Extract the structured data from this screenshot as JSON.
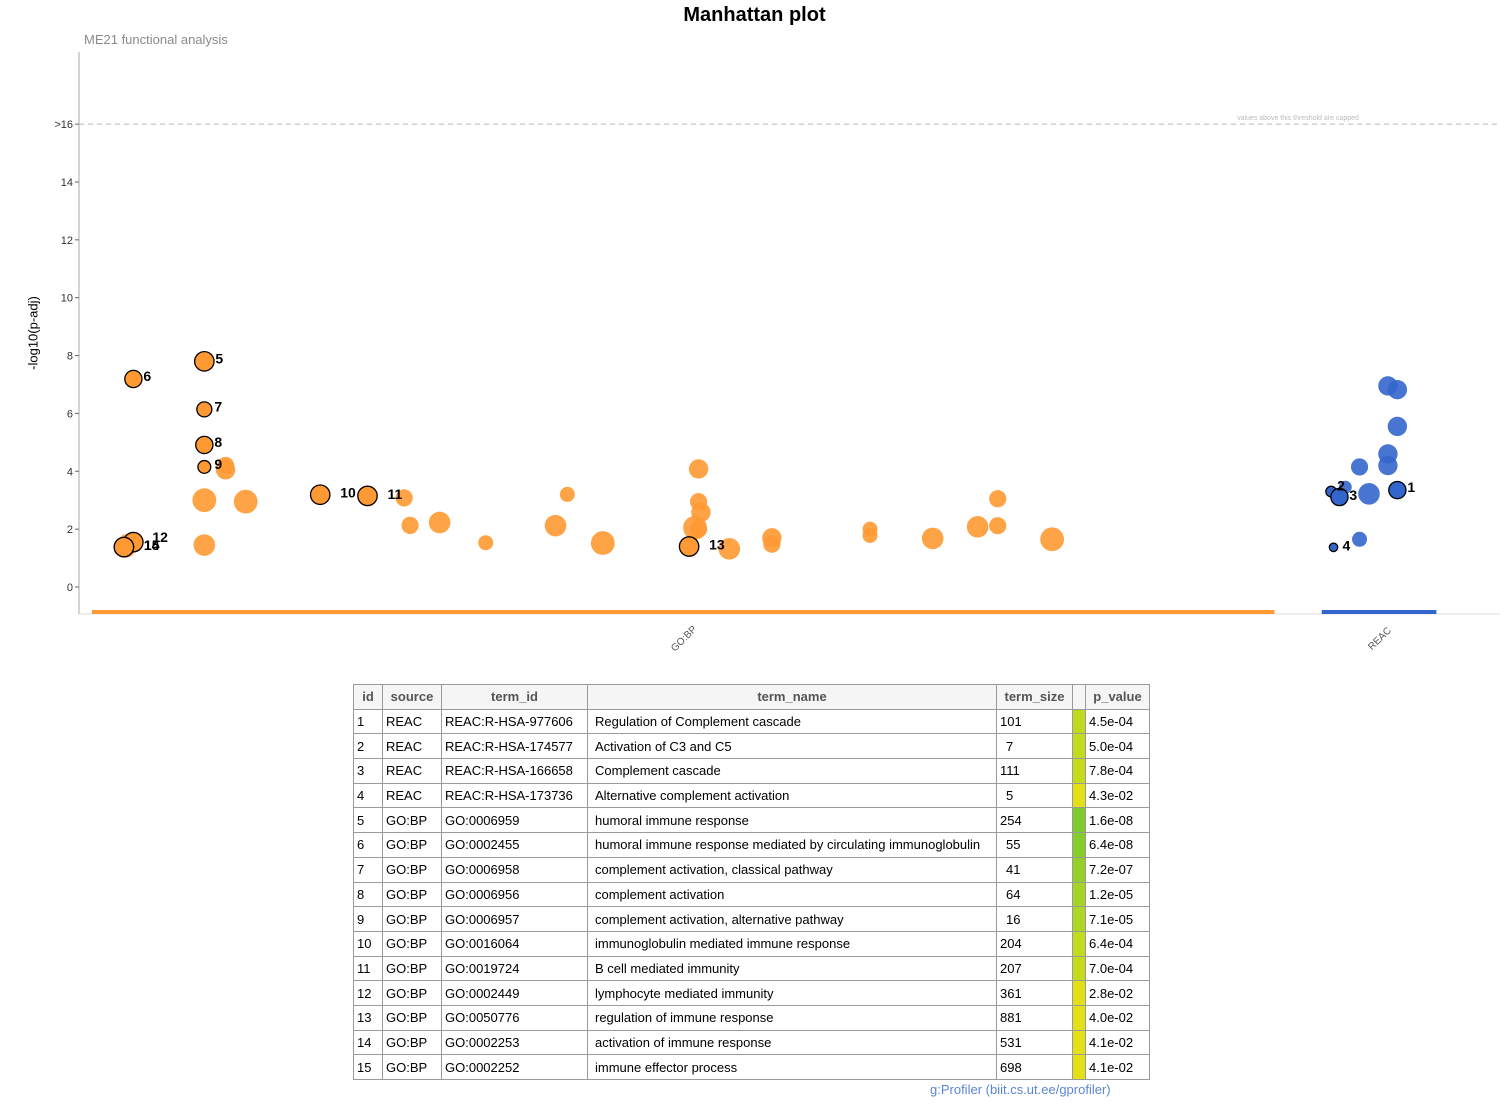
{
  "chart_data": {
    "type": "scatter",
    "title": "Manhattan plot",
    "subtitle": "ME21 functional analysis",
    "ylabel": "-log10(p-adj)",
    "ylim": [
      -0.9,
      18
    ],
    "yticks": [
      {
        "value": 0,
        "label": "0"
      },
      {
        "value": 2,
        "label": "2"
      },
      {
        "value": 4,
        "label": "4"
      },
      {
        "value": 6,
        "label": "6"
      },
      {
        "value": 8,
        "label": "8"
      },
      {
        "value": 10,
        "label": "10"
      },
      {
        "value": 12,
        "label": "12"
      },
      {
        "value": 14,
        "label": "14"
      },
      {
        "value": 16,
        "label": ">16"
      }
    ],
    "threshold": {
      "value": 16,
      "note": "values above this threshold are capped"
    },
    "grid": false,
    "x_axis": {
      "type": "categorical",
      "note": "x position = term position within source"
    },
    "sources": [
      {
        "name": "GO:BP",
        "color": "#FF9933",
        "xrange": [
          0,
          1000
        ]
      },
      {
        "name": "REAC",
        "color": "#3366CC",
        "xrange": [
          1040,
          1137
        ]
      }
    ],
    "series": [
      {
        "name": "GO:BP",
        "color": "#FF9933",
        "points": [
          {
            "x": 28,
            "y": 1.38,
            "size": 8
          },
          {
            "x": 30,
            "y": 1.5,
            "size": 7
          },
          {
            "x": 95,
            "y": 3.0,
            "size": 9
          },
          {
            "x": 95,
            "y": 1.45,
            "size": 8
          },
          {
            "x": 113,
            "y": 4.2,
            "size": 6
          },
          {
            "x": 113,
            "y": 4.05,
            "size": 7
          },
          {
            "x": 130,
            "y": 2.95,
            "size": 9
          },
          {
            "x": 264,
            "y": 3.08,
            "size": 6
          },
          {
            "x": 269,
            "y": 2.13,
            "size": 6
          },
          {
            "x": 294,
            "y": 2.23,
            "size": 8
          },
          {
            "x": 333,
            "y": 1.53,
            "size": 5
          },
          {
            "x": 392,
            "y": 2.12,
            "size": 8
          },
          {
            "x": 402,
            "y": 3.2,
            "size": 5
          },
          {
            "x": 432,
            "y": 1.52,
            "size": 9
          },
          {
            "x": 510,
            "y": 2.05,
            "size": 9
          },
          {
            "x": 513,
            "y": 4.08,
            "size": 7
          },
          {
            "x": 513,
            "y": 2.95,
            "size": 6
          },
          {
            "x": 513,
            "y": 2.0,
            "size": 6
          },
          {
            "x": 515,
            "y": 2.58,
            "size": 7
          },
          {
            "x": 539,
            "y": 1.32,
            "size": 8
          },
          {
            "x": 575,
            "y": 1.7,
            "size": 7
          },
          {
            "x": 575,
            "y": 1.48,
            "size": 6
          },
          {
            "x": 658,
            "y": 2.0,
            "size": 5
          },
          {
            "x": 658,
            "y": 1.78,
            "size": 5
          },
          {
            "x": 711,
            "y": 1.68,
            "size": 8
          },
          {
            "x": 749,
            "y": 2.08,
            "size": 8
          },
          {
            "x": 766,
            "y": 3.05,
            "size": 6
          },
          {
            "x": 766,
            "y": 2.12,
            "size": 6
          },
          {
            "x": 812,
            "y": 1.65,
            "size": 9
          }
        ]
      },
      {
        "name": "REAC",
        "color": "#3366CC",
        "points": [
          {
            "x": 1060,
            "y": 3.45,
            "size": 4
          },
          {
            "x": 1072,
            "y": 4.15,
            "size": 6
          },
          {
            "x": 1072,
            "y": 1.65,
            "size": 5
          },
          {
            "x": 1080,
            "y": 3.22,
            "size": 8
          },
          {
            "x": 1096,
            "y": 6.95,
            "size": 7
          },
          {
            "x": 1096,
            "y": 4.6,
            "size": 7
          },
          {
            "x": 1096,
            "y": 4.2,
            "size": 7
          },
          {
            "x": 1104,
            "y": 6.82,
            "size": 7
          },
          {
            "x": 1104,
            "y": 5.55,
            "size": 7
          }
        ]
      }
    ],
    "highlighted": [
      {
        "id": "1",
        "source": "REAC",
        "x": 1104,
        "y": 3.35,
        "size": 6
      },
      {
        "id": "2",
        "source": "REAC",
        "x": 1048,
        "y": 3.3,
        "size": 3
      },
      {
        "id": "3",
        "source": "REAC",
        "x": 1055,
        "y": 3.11,
        "size": 6
      },
      {
        "id": "4",
        "source": "REAC",
        "x": 1050,
        "y": 1.37,
        "size": 2
      },
      {
        "id": "5",
        "source": "GO:BP",
        "x": 95,
        "y": 7.8,
        "size": 7
      },
      {
        "id": "6",
        "source": "GO:BP",
        "x": 35,
        "y": 7.19,
        "size": 6
      },
      {
        "id": "7",
        "source": "GO:BP",
        "x": 95,
        "y": 6.14,
        "size": 5
      },
      {
        "id": "8",
        "source": "GO:BP",
        "x": 95,
        "y": 4.91,
        "size": 6
      },
      {
        "id": "9",
        "source": "GO:BP",
        "x": 95,
        "y": 4.15,
        "size": 4
      },
      {
        "id": "10",
        "source": "GO:BP",
        "x": 193,
        "y": 3.19,
        "size": 7
      },
      {
        "id": "11",
        "source": "GO:BP",
        "x": 233,
        "y": 3.15,
        "size": 7
      },
      {
        "id": "12",
        "source": "GO:BP",
        "x": 35,
        "y": 1.55,
        "size": 7
      },
      {
        "id": "13",
        "source": "GO:BP",
        "x": 505,
        "y": 1.4,
        "size": 7
      },
      {
        "id": "14",
        "source": "GO:BP",
        "x": 27,
        "y": 1.38,
        "size": 7
      },
      {
        "id": "15",
        "source": "GO:BP",
        "x": 27,
        "y": 1.38,
        "size": 7
      }
    ],
    "point_labels": [
      {
        "text": "1"
      },
      {
        "text": "2"
      },
      {
        "text": "3"
      },
      {
        "text": "4"
      },
      {
        "text": "5"
      },
      {
        "text": "6"
      },
      {
        "text": "7"
      },
      {
        "text": "8"
      },
      {
        "text": "9"
      },
      {
        "text": "10"
      },
      {
        "text": "11"
      },
      {
        "text": "12"
      },
      {
        "text": "13"
      },
      {
        "text": "14"
      },
      {
        "text": "15"
      }
    ]
  },
  "table": {
    "headers": [
      "id",
      "source",
      "term_id",
      "term_name",
      "term_size",
      "p_value"
    ],
    "rows": [
      {
        "id": "1",
        "source": "REAC",
        "term_id": "REAC:R-HSA-977606",
        "term_name": "Regulation of Complement cascade",
        "term_size": "101",
        "p_value": "4.5e-04",
        "color": "#BFDA1E"
      },
      {
        "id": "2",
        "source": "REAC",
        "term_id": "REAC:R-HSA-174577",
        "term_name": "Activation of C3 and C5",
        "term_size": "7",
        "p_value": "5.0e-04",
        "color": "#C2DB1E"
      },
      {
        "id": "3",
        "source": "REAC",
        "term_id": "REAC:R-HSA-166658",
        "term_name": "Complement cascade",
        "term_size": "111",
        "p_value": "7.8e-04",
        "color": "#C5DC1E"
      },
      {
        "id": "4",
        "source": "REAC",
        "term_id": "REAC:R-HSA-173736",
        "term_name": "Alternative complement activation",
        "term_size": "5",
        "p_value": "4.3e-02",
        "color": "#E5DF17"
      },
      {
        "id": "5",
        "source": "GO:BP",
        "term_id": "GO:0006959",
        "term_name": "humoral immune response",
        "term_size": "254",
        "p_value": "1.6e-08",
        "color": "#7DCB2E"
      },
      {
        "id": "6",
        "source": "GO:BP",
        "term_id": "GO:0002455",
        "term_name": "humoral immune response mediated by circulating immunoglobulin",
        "term_size": "55",
        "p_value": "6.4e-08",
        "color": "#86CD2C"
      },
      {
        "id": "7",
        "source": "GO:BP",
        "term_id": "GO:0006958",
        "term_name": "complement activation, classical pathway",
        "term_size": "41",
        "p_value": "7.2e-07",
        "color": "#95D02A"
      },
      {
        "id": "8",
        "source": "GO:BP",
        "term_id": "GO:0006956",
        "term_name": "complement activation",
        "term_size": "64",
        "p_value": "1.2e-05",
        "color": "#A5D426"
      },
      {
        "id": "9",
        "source": "GO:BP",
        "term_id": "GO:0006957",
        "term_name": "complement activation, alternative pathway",
        "term_size": "16",
        "p_value": "7.1e-05",
        "color": "#AED624"
      },
      {
        "id": "10",
        "source": "GO:BP",
        "term_id": "GO:0016064",
        "term_name": "immunoglobulin mediated immune response",
        "term_size": "204",
        "p_value": "6.4e-04",
        "color": "#C1DB1E"
      },
      {
        "id": "11",
        "source": "GO:BP",
        "term_id": "GO:0019724",
        "term_name": "B cell mediated immunity",
        "term_size": "207",
        "p_value": "7.0e-04",
        "color": "#C4DB1E"
      },
      {
        "id": "12",
        "source": "GO:BP",
        "term_id": "GO:0002449",
        "term_name": "lymphocyte mediated immunity",
        "term_size": "361",
        "p_value": "2.8e-02",
        "color": "#E2DF17"
      },
      {
        "id": "13",
        "source": "GO:BP",
        "term_id": "GO:0050776",
        "term_name": "regulation of immune response",
        "term_size": "881",
        "p_value": "4.0e-02",
        "color": "#E5DF17"
      },
      {
        "id": "14",
        "source": "GO:BP",
        "term_id": "GO:0002253",
        "term_name": "activation of immune response",
        "term_size": "531",
        "p_value": "4.1e-02",
        "color": "#E5DF17"
      },
      {
        "id": "15",
        "source": "GO:BP",
        "term_id": "GO:0002252",
        "term_name": "immune effector process",
        "term_size": "698",
        "p_value": "4.1e-02",
        "color": "#E5DF17"
      }
    ]
  },
  "footer": "g:Profiler (biit.cs.ut.ee/gprofiler)"
}
